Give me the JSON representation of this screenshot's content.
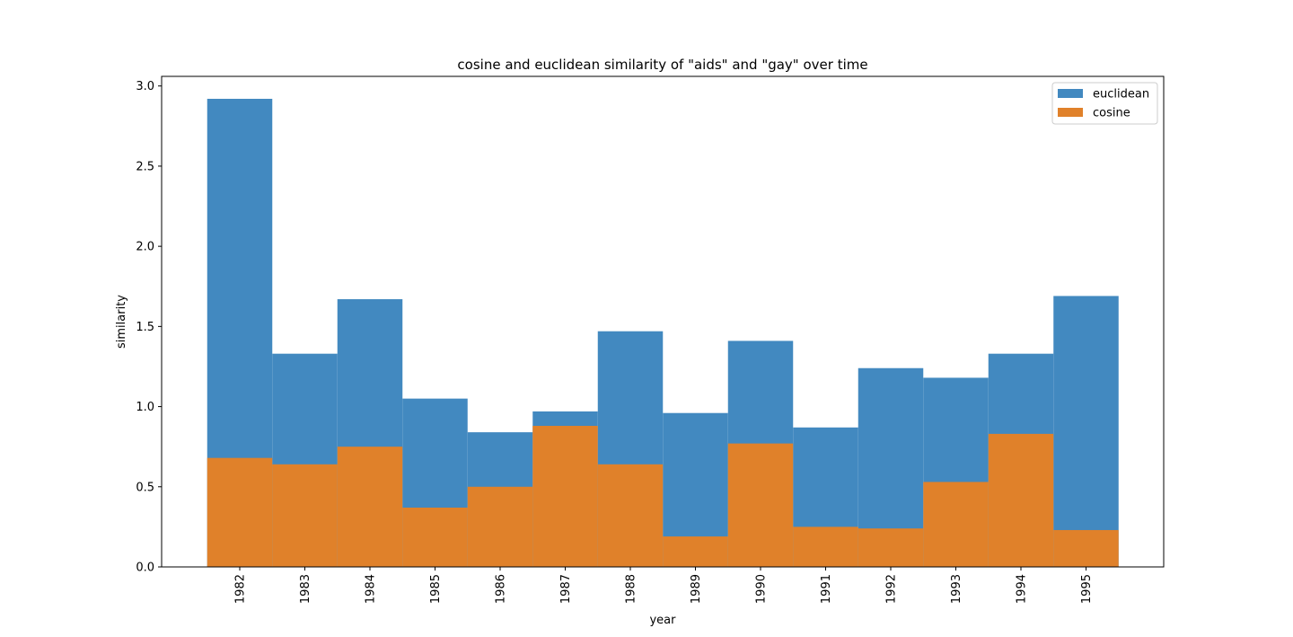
{
  "chart_data": {
    "type": "bar",
    "title": "cosine and euclidean similarity of \"aids\" and \"gay\" over time",
    "xlabel": "year",
    "ylabel": "similarity",
    "categories": [
      "1982",
      "1983",
      "1984",
      "1985",
      "1986",
      "1987",
      "1988",
      "1989",
      "1990",
      "1991",
      "1992",
      "1993",
      "1994",
      "1995"
    ],
    "series": [
      {
        "name": "euclidean",
        "color": "#4289c0",
        "values": [
          2.92,
          1.33,
          1.67,
          1.05,
          0.84,
          0.97,
          1.47,
          0.96,
          1.41,
          0.87,
          1.24,
          1.18,
          1.33,
          1.69
        ]
      },
      {
        "name": "cosine",
        "color": "#e0812a",
        "values": [
          0.68,
          0.64,
          0.75,
          0.37,
          0.5,
          0.88,
          0.64,
          0.19,
          0.77,
          0.25,
          0.24,
          0.53,
          0.83,
          0.23
        ]
      }
    ],
    "ylim": [
      0,
      3.06
    ],
    "yticks": [
      "0.0",
      "0.5",
      "1.0",
      "1.5",
      "2.0",
      "2.5",
      "3.0"
    ],
    "grid": false,
    "legend_position": "top-right"
  }
}
